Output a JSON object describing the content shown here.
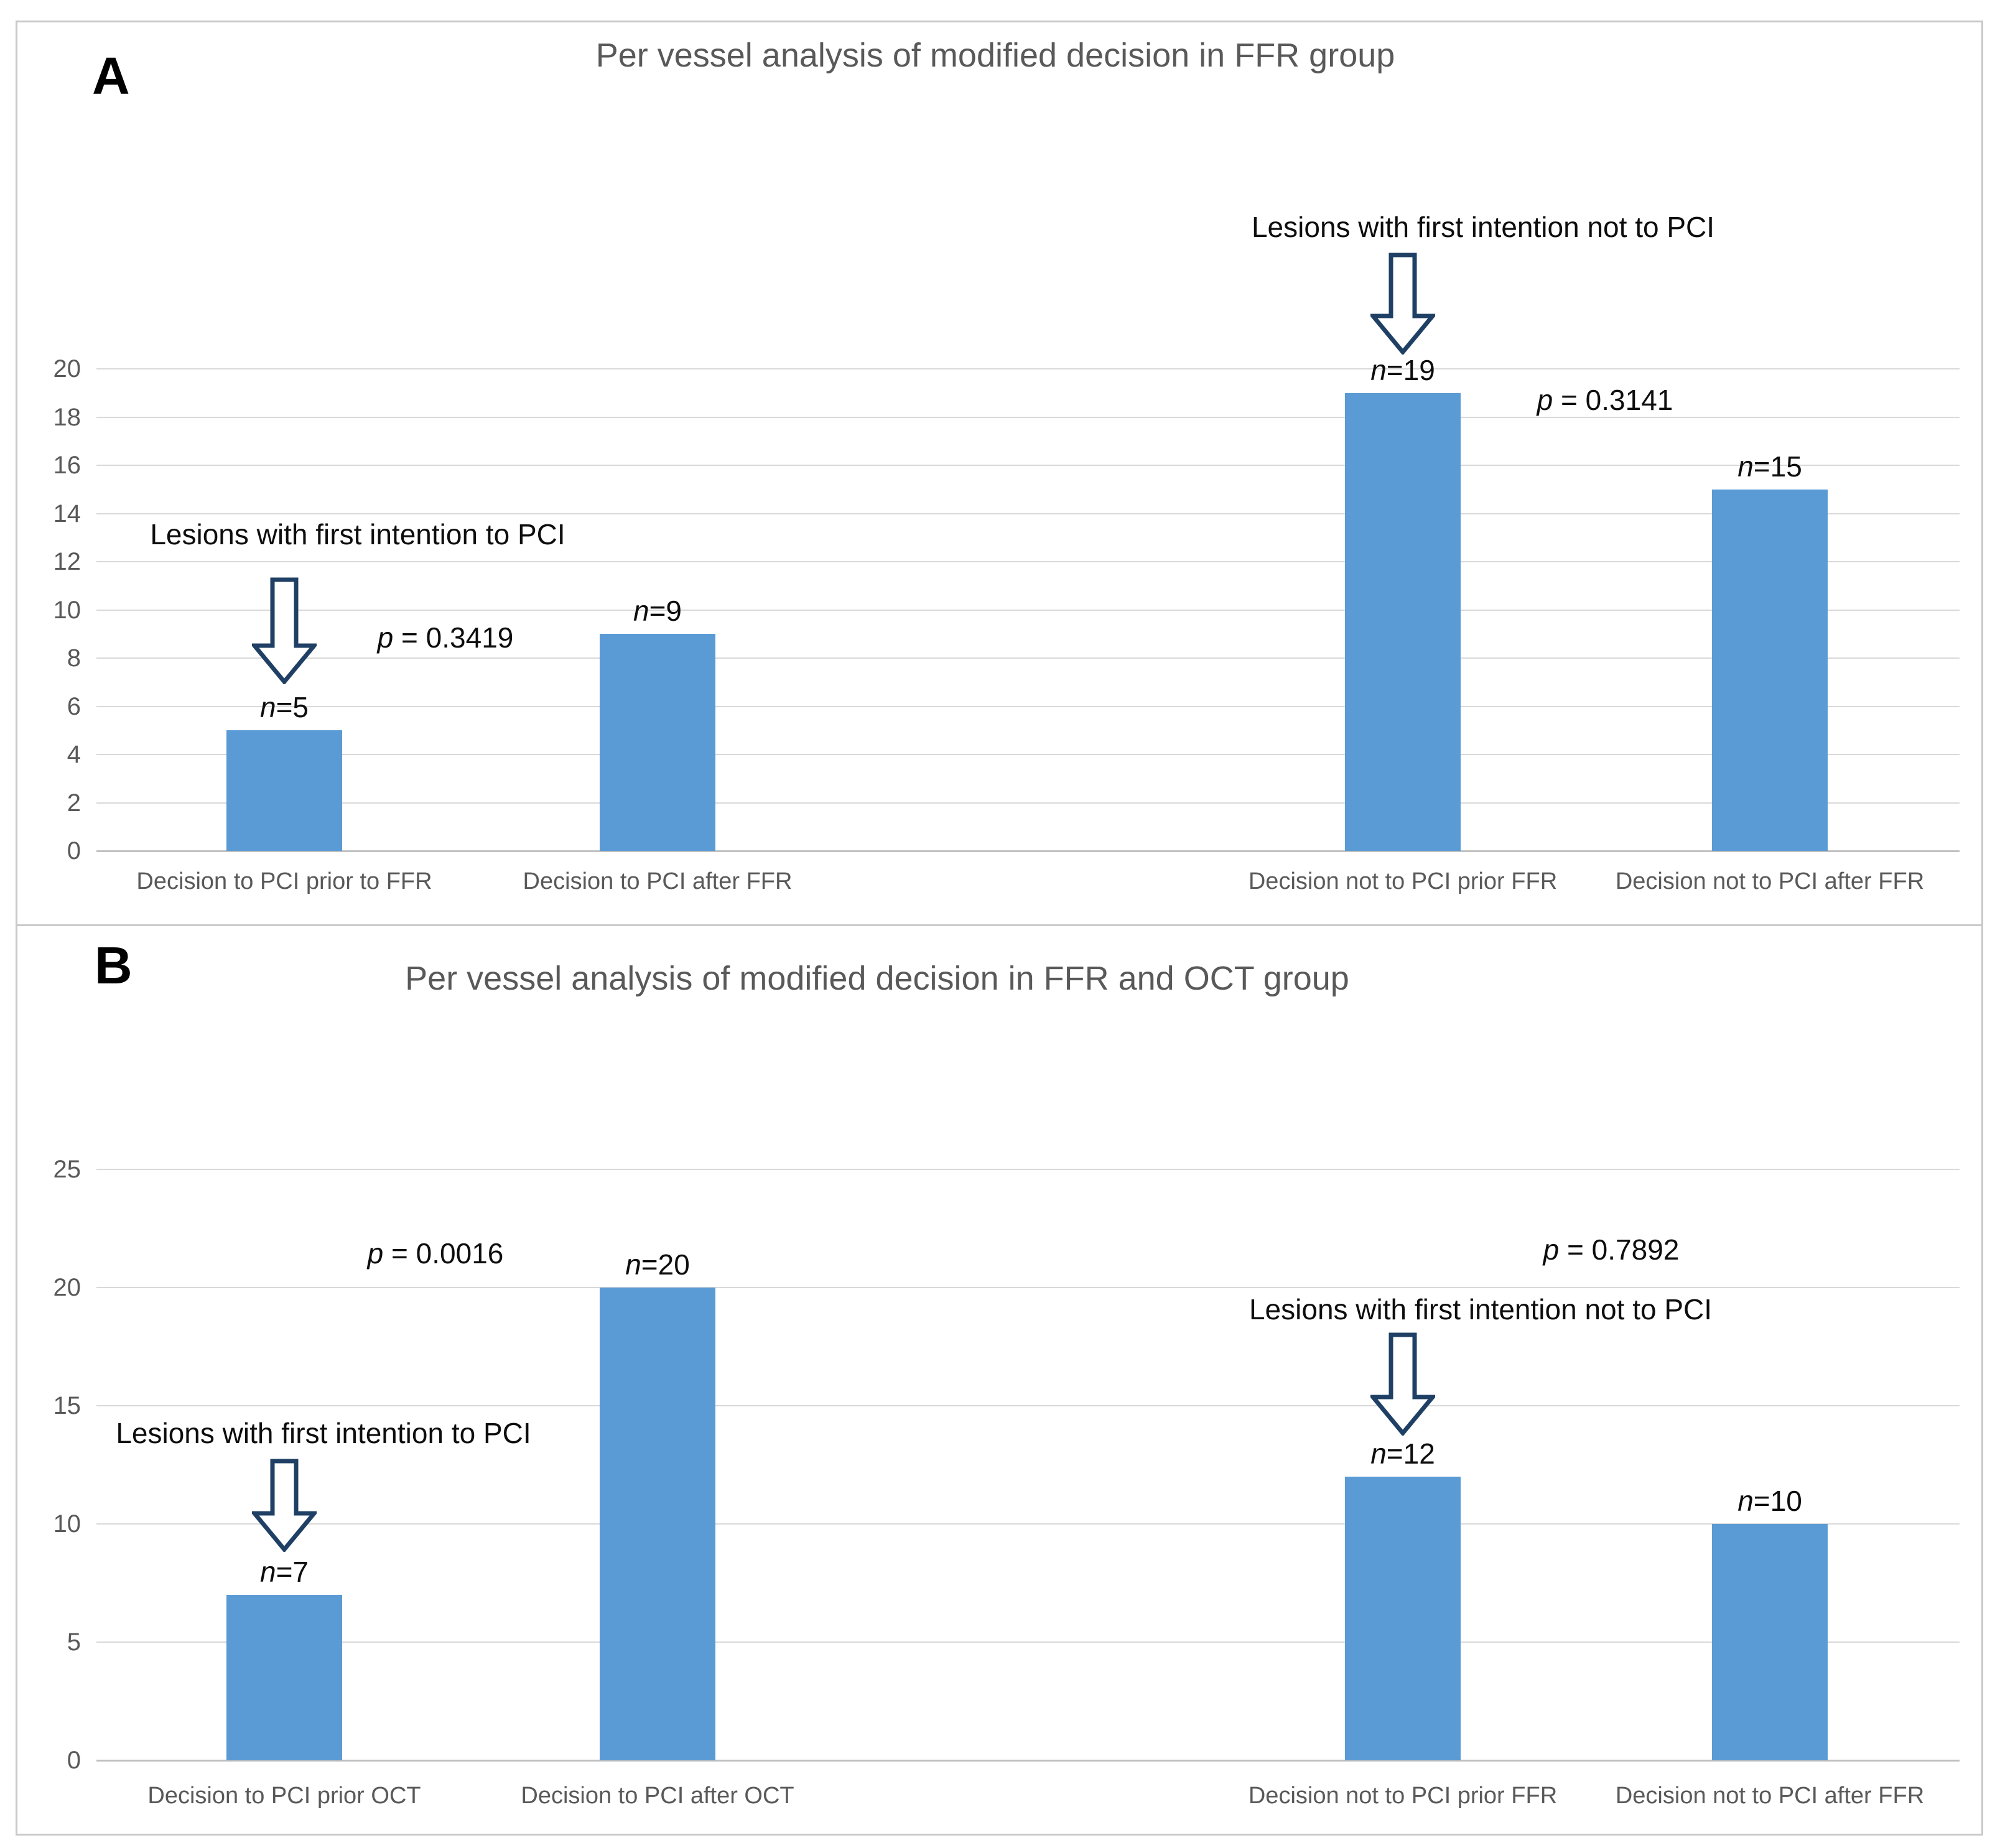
{
  "styles": {
    "bar_color": "#5B9BD5",
    "grid_color": "#D9D9D9",
    "axis_zero_color": "#BFBFBF",
    "axis_text_color": "#595959",
    "annotation_text_color": "#0D0D0D",
    "arrow_outline_color": "#1F4064",
    "arrow_fill_color": "#FFFFFF",
    "frame_border_color": "#C9C9C9"
  },
  "chart_data": [
    {
      "type": "bar",
      "panel_letter": "A",
      "title": "Per vessel analysis of modified decision in FFR group",
      "categories": [
        "Decision to PCI prior to FFR",
        "Decision to PCI after FFR",
        "Decision not to PCI prior FFR",
        "Decision not to PCI after FFR"
      ],
      "values": [
        5,
        9,
        19,
        15
      ],
      "bar_labels": [
        "n=5",
        "n=9",
        "n=19",
        "n=15"
      ],
      "p_values": [
        "p = 0.3419",
        "p = 0.3141"
      ],
      "callouts": [
        "Lesions with first intention to PCI",
        "Lesions with first intention not to PCI"
      ],
      "xlabel": "",
      "ylabel": "",
      "ylim": [
        0,
        20
      ],
      "y_ticks": [
        0,
        2,
        4,
        6,
        8,
        10,
        12,
        14,
        16,
        18,
        20
      ],
      "grid": true,
      "legend": "none",
      "bar_color": "#5B9BD5"
    },
    {
      "type": "bar",
      "panel_letter": "B",
      "title": "Per vessel analysis of modified decision in FFR and OCT group",
      "categories": [
        "Decision to PCI prior OCT",
        "Decision to PCI after OCT",
        "Decision not to PCI prior FFR",
        "Decision not to PCI after FFR"
      ],
      "values": [
        7,
        20,
        12,
        10
      ],
      "bar_labels": [
        "n=7",
        "n=20",
        "n=12",
        "n=10"
      ],
      "p_values": [
        "p = 0.0016",
        "p = 0.7892"
      ],
      "callouts": [
        "Lesions with first intention to PCI",
        "Lesions with first intention not to PCI"
      ],
      "xlabel": "",
      "ylabel": "",
      "ylim": [
        0,
        25
      ],
      "y_ticks": [
        0,
        5,
        10,
        15,
        20,
        25
      ],
      "grid": true,
      "legend": "none",
      "bar_color": "#5B9BD5"
    }
  ]
}
